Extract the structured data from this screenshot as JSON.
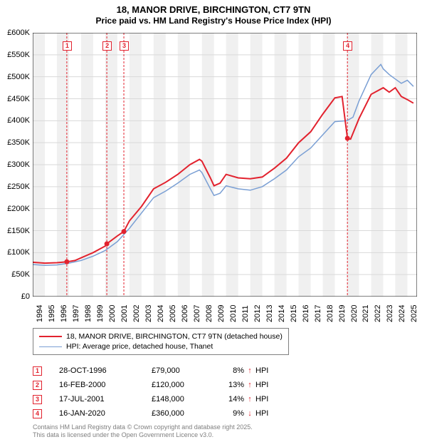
{
  "title": {
    "line1": "18, MANOR DRIVE, BIRCHINGTON, CT7 9TN",
    "line2": "Price paid vs. HM Land Registry's House Price Index (HPI)"
  },
  "chart": {
    "type": "line",
    "background_color": "#ffffff",
    "plot_background_stripes": {
      "color1": "#f0f0f0",
      "color2": "#ffffff"
    },
    "grid_color": "#d9d9d9",
    "xlim": [
      1994,
      2025.8
    ],
    "ylim": [
      0,
      600000
    ],
    "ytick_step": 50000,
    "ytick_format_prefix": "£",
    "ytick_format_suffix": "K",
    "yticks": [
      {
        "v": 0,
        "label": "£0"
      },
      {
        "v": 50000,
        "label": "£50K"
      },
      {
        "v": 100000,
        "label": "£100K"
      },
      {
        "v": 150000,
        "label": "£150K"
      },
      {
        "v": 200000,
        "label": "£200K"
      },
      {
        "v": 250000,
        "label": "£250K"
      },
      {
        "v": 300000,
        "label": "£300K"
      },
      {
        "v": 350000,
        "label": "£350K"
      },
      {
        "v": 400000,
        "label": "£400K"
      },
      {
        "v": 450000,
        "label": "£450K"
      },
      {
        "v": 500000,
        "label": "£500K"
      },
      {
        "v": 550000,
        "label": "£550K"
      },
      {
        "v": 600000,
        "label": "£600K"
      }
    ],
    "xticks": [
      1994,
      1995,
      1996,
      1997,
      1998,
      1999,
      2000,
      2001,
      2002,
      2003,
      2004,
      2005,
      2006,
      2007,
      2008,
      2009,
      2010,
      2011,
      2012,
      2013,
      2014,
      2015,
      2016,
      2017,
      2018,
      2019,
      2020,
      2021,
      2022,
      2023,
      2024,
      2025
    ],
    "label_fontsize": 11,
    "series": [
      {
        "name": "18, MANOR DRIVE, BIRCHINGTON, CT7 9TN (detached house)",
        "color": "#e2222e",
        "line_width": 2,
        "data": [
          [
            1994,
            78000
          ],
          [
            1995,
            76000
          ],
          [
            1996,
            77000
          ],
          [
            1996.82,
            79000
          ],
          [
            1997.5,
            82000
          ],
          [
            1998,
            88000
          ],
          [
            1999,
            100000
          ],
          [
            2000,
            115000
          ],
          [
            2000.13,
            120000
          ],
          [
            2001,
            138000
          ],
          [
            2001.54,
            148000
          ],
          [
            2002,
            172000
          ],
          [
            2003,
            205000
          ],
          [
            2004,
            245000
          ],
          [
            2005,
            260000
          ],
          [
            2006,
            278000
          ],
          [
            2007,
            300000
          ],
          [
            2007.8,
            312000
          ],
          [
            2008,
            308000
          ],
          [
            2008.7,
            270000
          ],
          [
            2009,
            252000
          ],
          [
            2009.5,
            258000
          ],
          [
            2010,
            278000
          ],
          [
            2011,
            270000
          ],
          [
            2012,
            268000
          ],
          [
            2013,
            272000
          ],
          [
            2014,
            292000
          ],
          [
            2015,
            315000
          ],
          [
            2016,
            350000
          ],
          [
            2017,
            375000
          ],
          [
            2018,
            415000
          ],
          [
            2019,
            452000
          ],
          [
            2019.6,
            455000
          ],
          [
            2020.04,
            360000
          ],
          [
            2020.3,
            358000
          ],
          [
            2021,
            405000
          ],
          [
            2022,
            460000
          ],
          [
            2023,
            475000
          ],
          [
            2023.5,
            465000
          ],
          [
            2024,
            475000
          ],
          [
            2024.5,
            455000
          ],
          [
            2025,
            448000
          ],
          [
            2025.5,
            440000
          ]
        ]
      },
      {
        "name": "HPI: Average price, detached house, Thanet",
        "color": "#7a9fd4",
        "line_width": 1.5,
        "data": [
          [
            1994,
            73000
          ],
          [
            1995,
            71000
          ],
          [
            1996,
            72000
          ],
          [
            1997,
            76000
          ],
          [
            1998,
            82000
          ],
          [
            1999,
            92000
          ],
          [
            2000,
            105000
          ],
          [
            2001,
            125000
          ],
          [
            2002,
            155000
          ],
          [
            2003,
            190000
          ],
          [
            2004,
            225000
          ],
          [
            2005,
            240000
          ],
          [
            2006,
            258000
          ],
          [
            2007,
            278000
          ],
          [
            2007.8,
            288000
          ],
          [
            2008,
            282000
          ],
          [
            2008.7,
            245000
          ],
          [
            2009,
            230000
          ],
          [
            2009.5,
            235000
          ],
          [
            2010,
            252000
          ],
          [
            2011,
            245000
          ],
          [
            2012,
            242000
          ],
          [
            2013,
            250000
          ],
          [
            2014,
            268000
          ],
          [
            2015,
            288000
          ],
          [
            2016,
            318000
          ],
          [
            2017,
            338000
          ],
          [
            2018,
            368000
          ],
          [
            2019,
            398000
          ],
          [
            2020,
            400000
          ],
          [
            2020.5,
            408000
          ],
          [
            2021,
            445000
          ],
          [
            2022,
            505000
          ],
          [
            2022.8,
            528000
          ],
          [
            2023,
            518000
          ],
          [
            2023.5,
            505000
          ],
          [
            2024,
            495000
          ],
          [
            2024.5,
            485000
          ],
          [
            2025,
            492000
          ],
          [
            2025.5,
            478000
          ]
        ]
      }
    ],
    "sale_markers": [
      {
        "n": 1,
        "x": 1996.82,
        "y": 79000,
        "color": "#e2222e",
        "vline_color": "#e2222e"
      },
      {
        "n": 2,
        "x": 2000.13,
        "y": 120000,
        "color": "#e2222e",
        "vline_color": "#e2222e"
      },
      {
        "n": 3,
        "x": 2001.54,
        "y": 148000,
        "color": "#e2222e",
        "vline_color": "#e2222e"
      },
      {
        "n": 4,
        "x": 2020.04,
        "y": 360000,
        "color": "#e2222e",
        "vline_color": "#e2222e"
      }
    ]
  },
  "legend": {
    "border_color": "#808080",
    "items": [
      {
        "label": "18, MANOR DRIVE, BIRCHINGTON, CT7 9TN (detached house)",
        "color": "#e2222e",
        "width": 2
      },
      {
        "label": "HPI: Average price, detached house, Thanet",
        "color": "#7a9fd4",
        "width": 1.5
      }
    ]
  },
  "sales_table": {
    "rows": [
      {
        "n": 1,
        "date": "28-OCT-1996",
        "price": "£79,000",
        "pct": "8%",
        "arrow": "↑",
        "arrow_color": "#e2222e",
        "hpi": "HPI",
        "marker_color": "#e2222e"
      },
      {
        "n": 2,
        "date": "16-FEB-2000",
        "price": "£120,000",
        "pct": "13%",
        "arrow": "↑",
        "arrow_color": "#e2222e",
        "hpi": "HPI",
        "marker_color": "#e2222e"
      },
      {
        "n": 3,
        "date": "17-JUL-2001",
        "price": "£148,000",
        "pct": "14%",
        "arrow": "↑",
        "arrow_color": "#e2222e",
        "hpi": "HPI",
        "marker_color": "#e2222e"
      },
      {
        "n": 4,
        "date": "16-JAN-2020",
        "price": "£360,000",
        "pct": "9%",
        "arrow": "↓",
        "arrow_color": "#e2222e",
        "hpi": "HPI",
        "marker_color": "#e2222e"
      }
    ]
  },
  "footer": {
    "line1": "Contains HM Land Registry data © Crown copyright and database right 2025.",
    "line2": "This data is licensed under the Open Government Licence v3.0.",
    "color": "#808080"
  }
}
